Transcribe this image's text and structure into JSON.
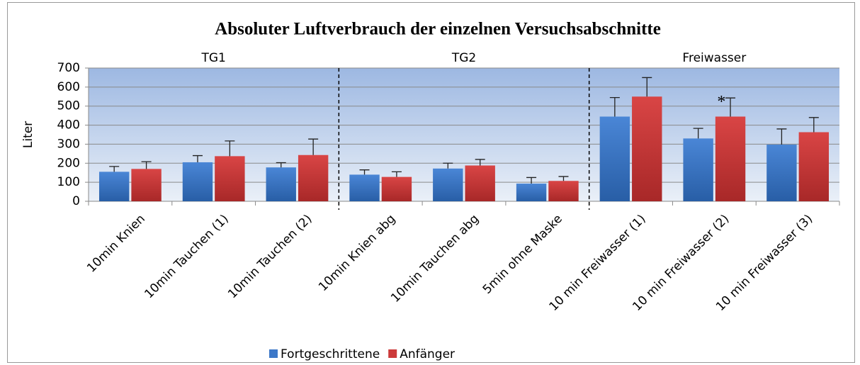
{
  "chart_data": {
    "type": "bar",
    "title": "Absoluter Luftverbrauch der einzelnen Versuchsabschnitte",
    "y_label": "Liter",
    "groups": [
      "TG1",
      "TG2",
      "Freiwasser"
    ],
    "categories": [
      "10min Knien",
      "10min Tauchen (1)",
      "10min Tauchen (2)",
      "10min Knien abg",
      "10min Tauchen abg",
      "5min ohne Maske",
      "10 min Freiwasser (1)",
      "10 min Freiwasser (2)",
      "10 min Freiwasser (3)"
    ],
    "series": [
      {
        "name": "Fortgeschrittene",
        "color": "#3d78c8",
        "values": [
          155,
          205,
          178,
          140,
          172,
          93,
          445,
          330,
          298
        ],
        "errors": [
          28,
          35,
          25,
          25,
          28,
          32,
          100,
          53,
          82
        ]
      },
      {
        "name": "Anfänger",
        "color": "#cc3a3a",
        "values": [
          170,
          237,
          243,
          128,
          188,
          107,
          550,
          445,
          363
        ],
        "errors": [
          38,
          80,
          84,
          27,
          32,
          23,
          100,
          98,
          77
        ]
      }
    ],
    "annotations": [
      {
        "text": "*",
        "category": "10 min Freiwasser (2)",
        "y": 530
      }
    ],
    "ylim": [
      0,
      700
    ],
    "yticks": [
      0,
      100,
      200,
      300,
      400,
      500,
      600,
      700
    ],
    "grid": true,
    "legend": "bottom"
  }
}
